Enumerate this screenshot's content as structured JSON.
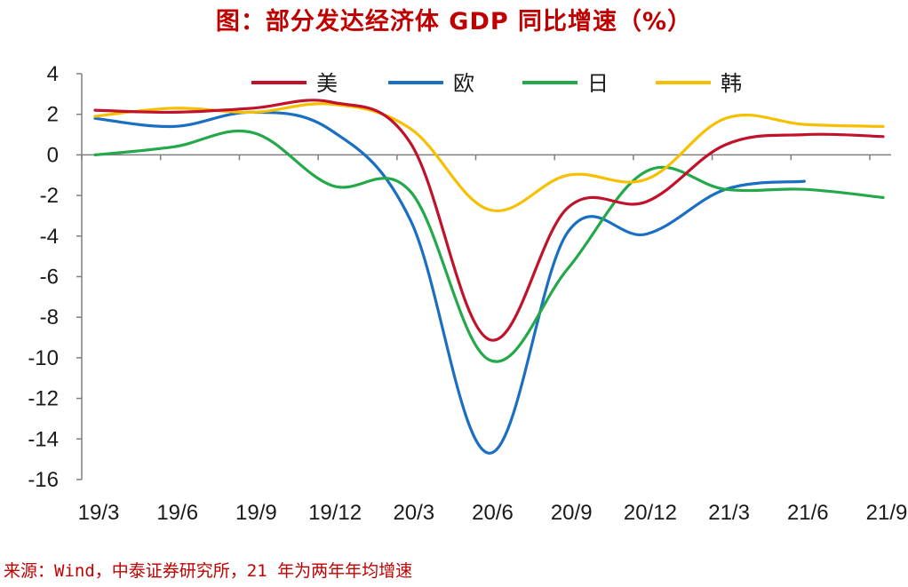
{
  "chart_data": {
    "type": "line",
    "title": "图：部分发达经济体 GDP 同比增速（%）",
    "xlabel": "",
    "ylabel": "",
    "ylim": [
      -16,
      4
    ],
    "yticks": [
      4,
      2,
      0,
      -2,
      -4,
      -6,
      -8,
      -10,
      -12,
      -14,
      -16
    ],
    "categories": [
      "19/3",
      "19/6",
      "19/9",
      "19/12",
      "20/3",
      "20/6",
      "20/9",
      "20/12",
      "21/3",
      "21/6",
      "21/9"
    ],
    "legend_position": "top",
    "grid": false,
    "series": [
      {
        "name": "美",
        "color": "#c0122b",
        "values": [
          2.2,
          2.1,
          2.3,
          2.6,
          0.6,
          -9.1,
          -2.6,
          -2.3,
          0.5,
          1.0,
          0.9
        ]
      },
      {
        "name": "欧",
        "color": "#1b6fc2",
        "values": [
          1.8,
          1.4,
          2.1,
          1.2,
          -3.2,
          -14.7,
          -3.8,
          -3.9,
          -1.7,
          -1.3,
          null
        ]
      },
      {
        "name": "日",
        "color": "#23a84a",
        "values": [
          0.0,
          0.4,
          1.1,
          -1.5,
          -1.8,
          -10.1,
          -5.6,
          -0.8,
          -1.7,
          -1.7,
          -2.1
        ]
      },
      {
        "name": "韩",
        "color": "#f6c000",
        "values": [
          1.9,
          2.3,
          2.1,
          2.5,
          1.3,
          -2.7,
          -1.0,
          -1.2,
          1.8,
          1.5,
          1.4
        ]
      }
    ]
  },
  "source_note": "来源：Wind，中泰证券研究所，21 年为两年年均增速"
}
